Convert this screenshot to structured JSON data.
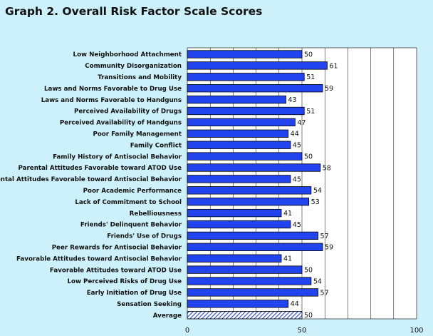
{
  "title": "Graph 2. Overall Risk Factor Scale Scores",
  "colors": {
    "background": "#cdf1fb",
    "plot": "#ffffff",
    "bar": "#2244ee",
    "bar_border": "#000000",
    "average_hatch": "#2244ee"
  },
  "chart_data": {
    "type": "bar",
    "orientation": "horizontal",
    "title": "Graph 2. Overall Risk Factor Scale Scores",
    "xlabel": "",
    "ylabel": "",
    "xlim": [
      0,
      100
    ],
    "xticks": [
      0,
      50,
      100
    ],
    "grid": "vertical",
    "legend": "none",
    "categories": [
      "Low Neighborhood Attachment",
      "Community Disorganization",
      "Transitions and Mobility",
      "Laws and Norms Favorable to Drug Use",
      "Laws and Norms Favorable to Handguns",
      "Perceived Availability of Drugs",
      "Perceived Availability of Handguns",
      "Poor Family Management",
      "Family Conflict",
      "Family History of Antisocial Behavior",
      "Parental Attitudes Favorable toward ATOD Use",
      "Parental Attitudes Favorable toward Antisocial Behavior",
      "Poor Academic Performance",
      "Lack of Commitment to School",
      "Rebelliousness",
      "Friends' Delinquent Behavior",
      "Friends' Use of Drugs",
      "Peer Rewards for Antisocial Behavior",
      "Favorable Attitudes toward Antisocial Behavior",
      "Favorable Attitudes toward ATOD Use",
      "Low Perceived Risks of Drug Use",
      "Early Initiation of Drug Use",
      "Sensation Seeking",
      "Average"
    ],
    "values": [
      50,
      61,
      51,
      59,
      43,
      51,
      47,
      44,
      45,
      50,
      58,
      45,
      54,
      53,
      41,
      45,
      57,
      59,
      41,
      50,
      54,
      57,
      44,
      50
    ],
    "hatched_category": "Average"
  }
}
